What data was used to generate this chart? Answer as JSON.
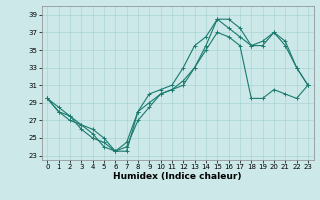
{
  "xlabel": "Humidex (Indice chaleur)",
  "ylabel": "",
  "background_color": "#cce8e8",
  "grid_color": "#aad4d4",
  "line_color": "#1a7a6e",
  "xlim": [
    -0.5,
    23.5
  ],
  "ylim": [
    22.5,
    40.0
  ],
  "xticks": [
    0,
    1,
    2,
    3,
    4,
    5,
    6,
    7,
    8,
    9,
    10,
    11,
    12,
    13,
    14,
    15,
    16,
    17,
    18,
    19,
    20,
    21,
    22,
    23
  ],
  "yticks": [
    23,
    25,
    27,
    29,
    31,
    33,
    35,
    37,
    39
  ],
  "line1_x": [
    0,
    1,
    2,
    3,
    4,
    5,
    6,
    7,
    8,
    9,
    10,
    11,
    12,
    13,
    14,
    15,
    16,
    17,
    18,
    19,
    20,
    21,
    22,
    23
  ],
  "line1_y": [
    29.5,
    28.5,
    27.5,
    26.5,
    26.0,
    25.0,
    23.5,
    23.5,
    28.0,
    30.0,
    30.5,
    31.0,
    33.0,
    35.5,
    36.5,
    38.5,
    38.5,
    37.5,
    35.5,
    35.5,
    37.0,
    35.5,
    33.0,
    31.0
  ],
  "line2_x": [
    0,
    1,
    2,
    3,
    4,
    5,
    6,
    7,
    8,
    9,
    10,
    11,
    12,
    13,
    14,
    15,
    16,
    17,
    18,
    19,
    20,
    21,
    22,
    23
  ],
  "line2_y": [
    29.5,
    28.0,
    27.5,
    26.0,
    25.0,
    24.5,
    23.5,
    24.0,
    27.0,
    28.5,
    30.0,
    30.5,
    31.0,
    33.0,
    35.5,
    38.5,
    37.5,
    36.5,
    35.5,
    36.0,
    37.0,
    36.0,
    33.0,
    31.0
  ],
  "line3_x": [
    0,
    1,
    2,
    3,
    4,
    5,
    6,
    7,
    8,
    9,
    10,
    11,
    12,
    13,
    14,
    15,
    16,
    17,
    18,
    19,
    20,
    21,
    22,
    23
  ],
  "line3_y": [
    29.5,
    28.0,
    27.0,
    26.5,
    25.5,
    24.0,
    23.5,
    24.5,
    28.0,
    29.0,
    30.0,
    30.5,
    31.5,
    33.0,
    35.0,
    37.0,
    36.5,
    35.5,
    29.5,
    29.5,
    30.5,
    30.0,
    29.5,
    31.0
  ],
  "marker_size": 2.5,
  "line_width": 0.8,
  "tick_fontsize": 5.0,
  "xlabel_fontsize": 6.5,
  "xlabel_fontweight": "bold"
}
